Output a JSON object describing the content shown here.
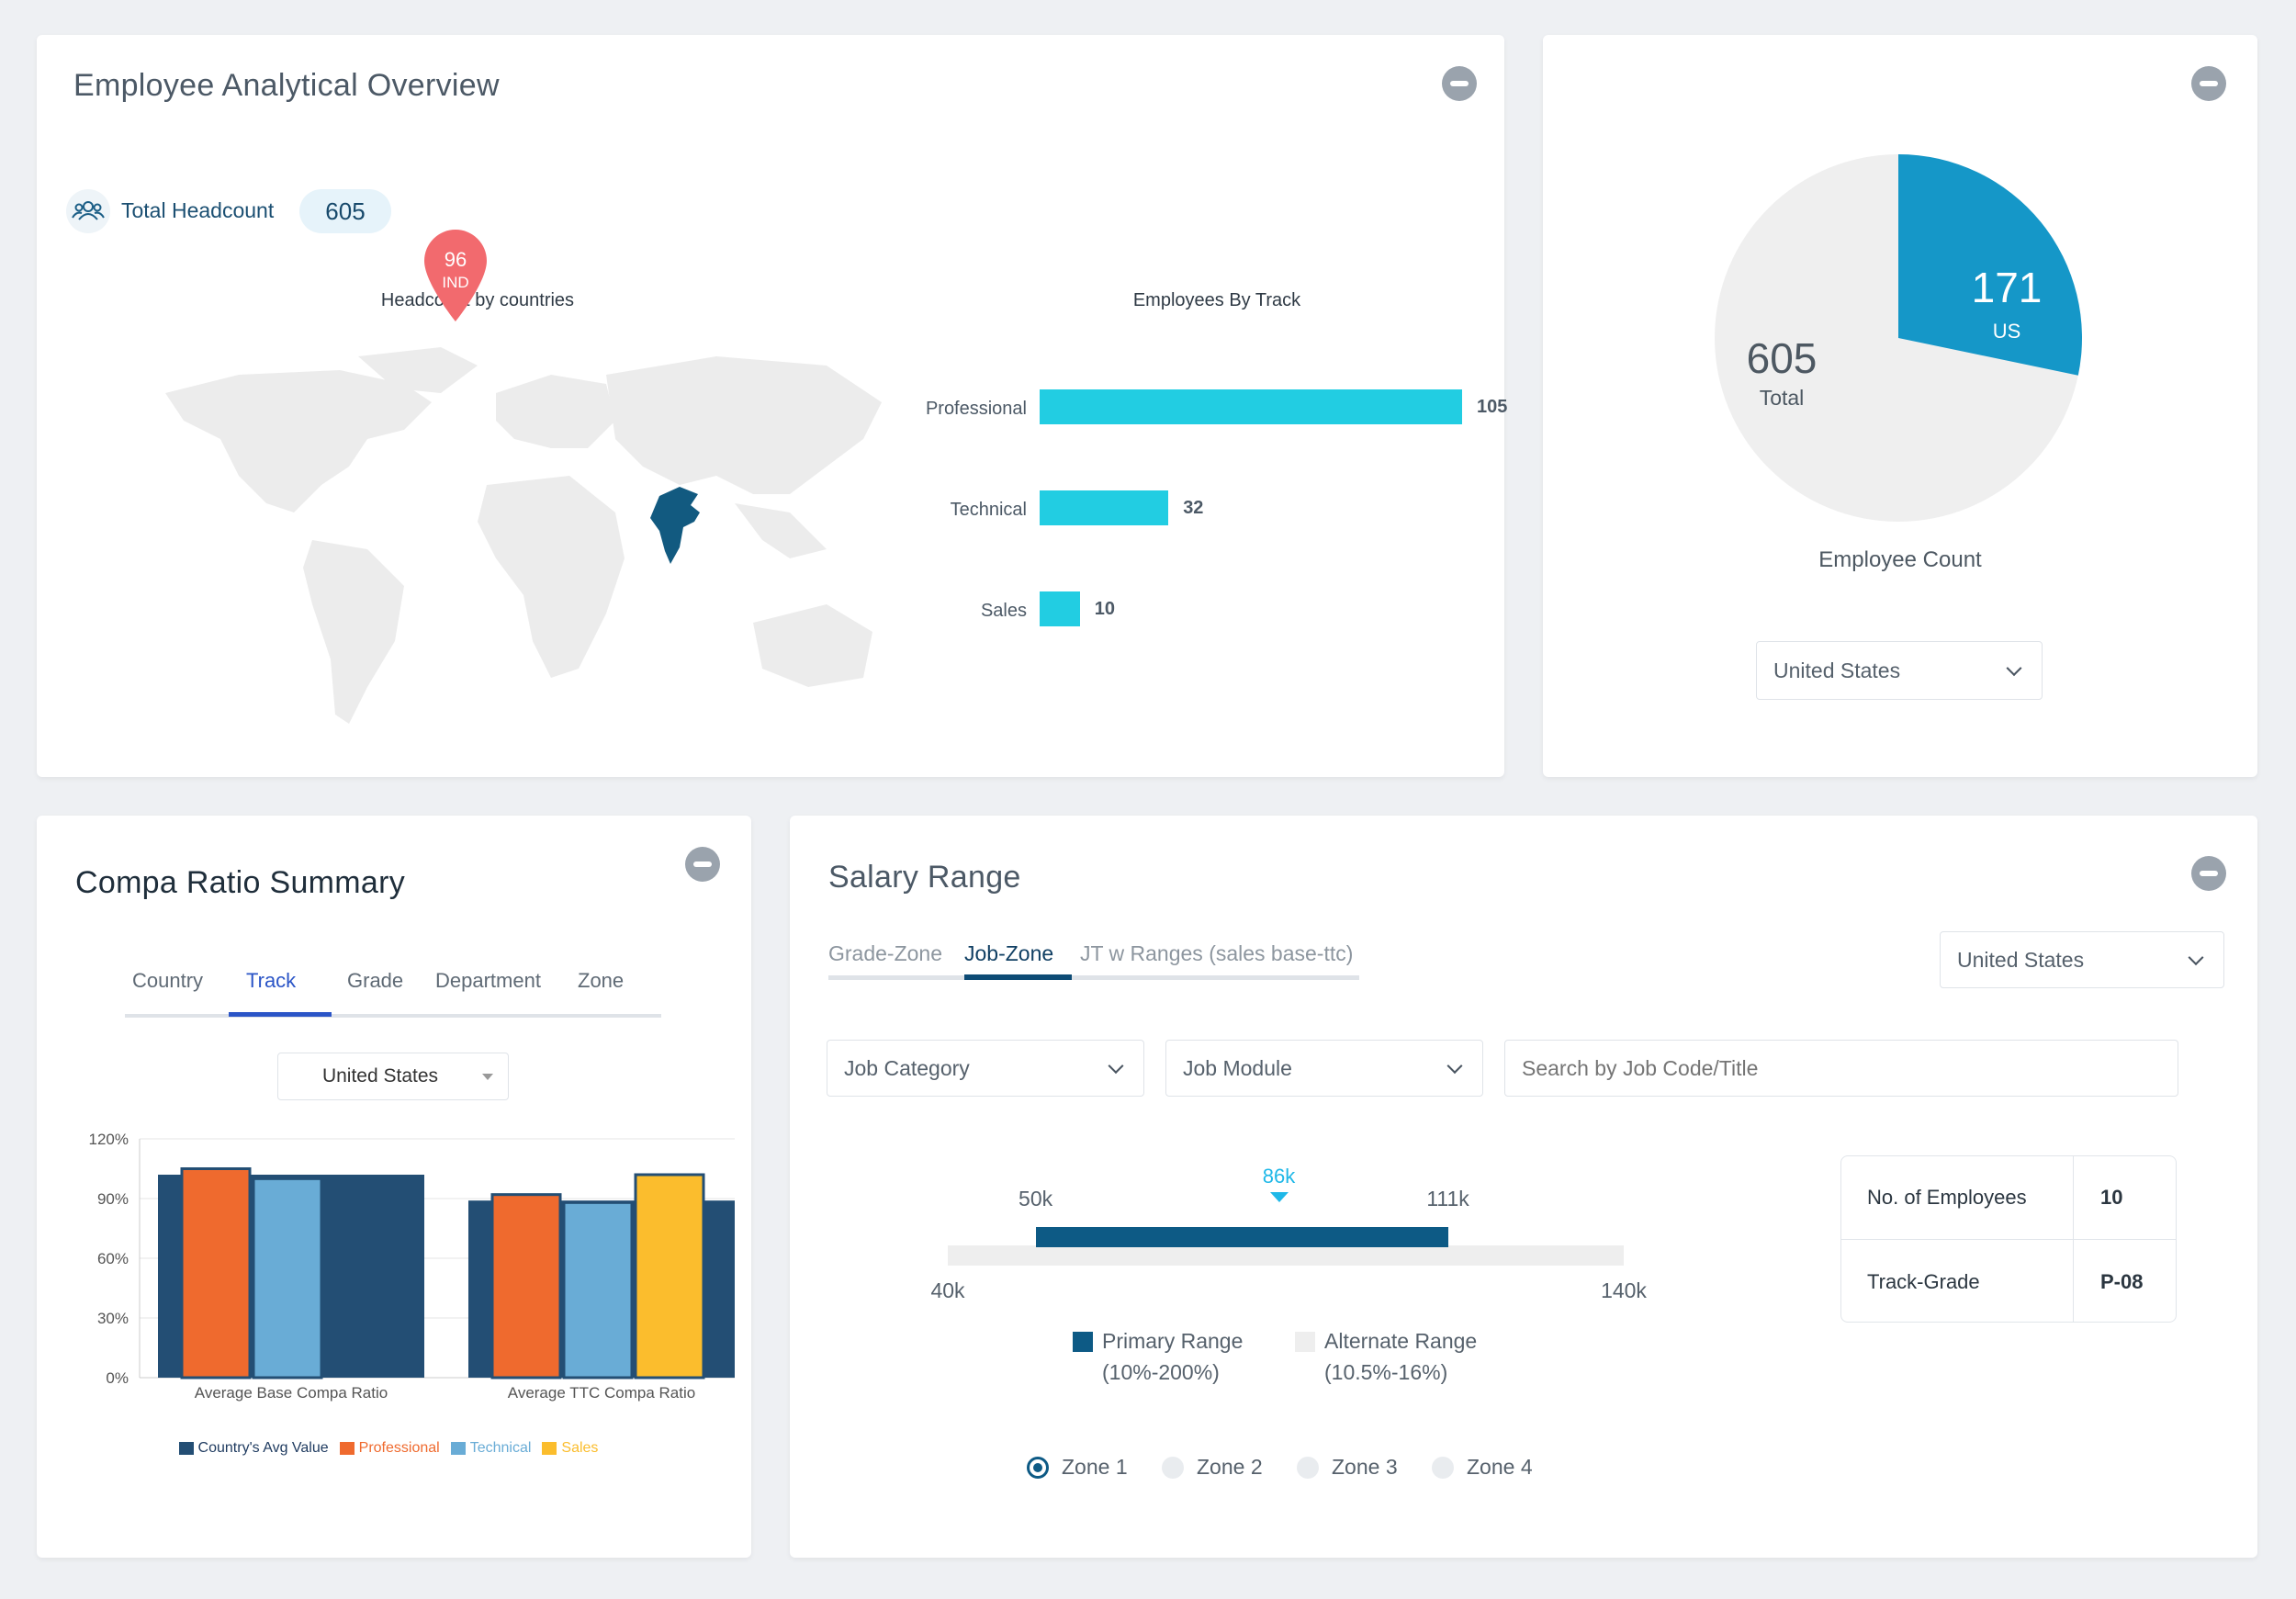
{
  "colors": {
    "cyan_bar": "#22cde2",
    "pie_us": "#1597c8",
    "pie_rest": "#efefef",
    "country_avg": "#234e74",
    "professional": "#ef6a2e",
    "technical": "#69acd6",
    "sales": "#fbbd2d",
    "primary_range": "#0d5a85",
    "alternate_range": "#eeeeee",
    "marker": "#1fb8e8",
    "map_pin": "#f26a6e",
    "india": "#125a80"
  },
  "overview": {
    "title": "Employee Analytical Overview",
    "headcount_icon": "users-icon",
    "headcount_label": "Total Headcount",
    "headcount_value": "605",
    "map_title": "Headcount by countries",
    "map_pin_value": "96",
    "map_pin_code": "IND"
  },
  "employee_count": {
    "total_value": "605",
    "total_label": "Total",
    "us_value": "171",
    "us_label": "US",
    "caption": "Employee Count",
    "country_select": "United States"
  },
  "compa": {
    "title": "Compa Ratio Summary",
    "tabs": [
      "Country",
      "Track",
      "Grade",
      "Department",
      "Zone"
    ],
    "active_tab": "Track",
    "country_select": "United States"
  },
  "salary": {
    "title": "Salary Range",
    "tabs": [
      "Grade-Zone",
      "Job-Zone",
      "JT w Ranges (sales base-ttc)"
    ],
    "active_tab": "Job-Zone",
    "country_select": "United States",
    "job_category": "Job Category",
    "job_module": "Job Module",
    "search_placeholder": "Search by Job Code/Title",
    "range": {
      "min": 40,
      "max": 140,
      "primary_min": 50,
      "primary_max": 111,
      "marker": 86,
      "min_label": "40k",
      "max_label": "140k",
      "primary_min_label": "50k",
      "primary_max_label": "111k",
      "marker_label": "86k"
    },
    "legend_primary": "Primary Range",
    "legend_primary_pct": "(10%-200%)",
    "legend_alternate": "Alternate Range",
    "legend_alternate_pct": "(10.5%-16%)",
    "info": [
      {
        "label": "No. of Employees",
        "value": "10"
      },
      {
        "label": "Track-Grade",
        "value": "P-08"
      }
    ],
    "zones": [
      "Zone 1",
      "Zone 2",
      "Zone 3",
      "Zone 4"
    ],
    "selected_zone": "Zone 1"
  },
  "chart_data": [
    {
      "type": "bar",
      "orientation": "horizontal",
      "title": "Employees By Track",
      "categories": [
        "Professional",
        "Technical",
        "Sales"
      ],
      "values": [
        105,
        32,
        10
      ]
    },
    {
      "type": "pie",
      "title": "Employee Count",
      "total": 605,
      "slices": [
        {
          "label": "US",
          "value": 171
        },
        {
          "label": "",
          "value": 434
        }
      ]
    },
    {
      "type": "bar",
      "title": "",
      "categories": [
        "Average Base Compa Ratio",
        "Average TTC Compa Ratio"
      ],
      "ylim": [
        0,
        120
      ],
      "yticks": [
        "0%",
        "30%",
        "60%",
        "90%",
        "120%"
      ],
      "grid": true,
      "legend_position": "bottom",
      "series": [
        {
          "name": "Country's Avg Value",
          "values": [
            102,
            89
          ]
        },
        {
          "name": "Professional",
          "values": [
            105,
            92
          ]
        },
        {
          "name": "Technical",
          "values": [
            100,
            88
          ]
        },
        {
          "name": "Sales",
          "values": [
            null,
            102
          ]
        }
      ]
    }
  ]
}
